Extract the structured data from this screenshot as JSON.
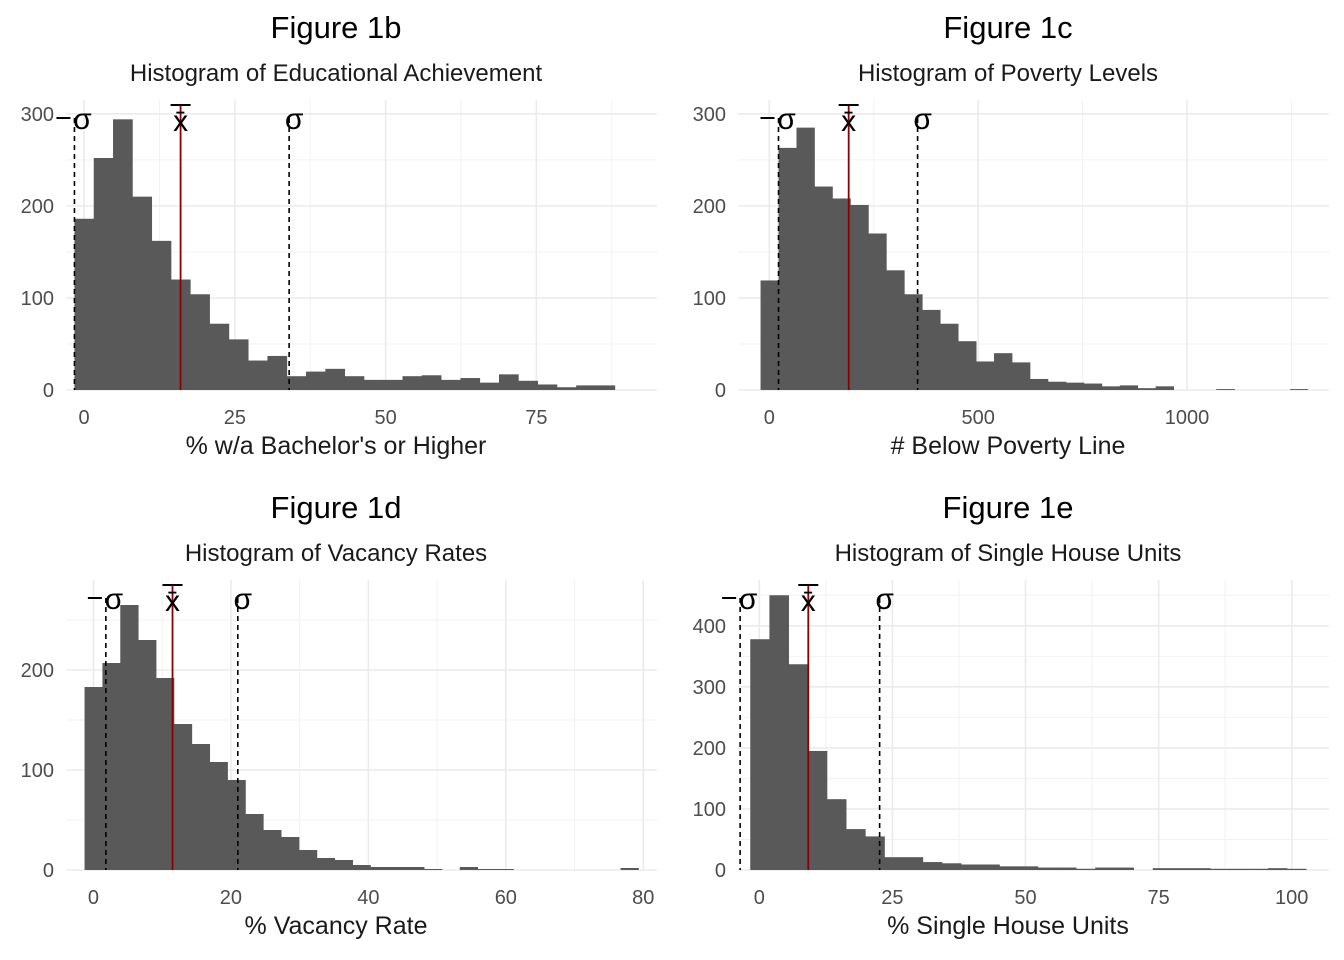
{
  "chart_data": [
    {
      "type": "bar",
      "title": "Figure 1b",
      "subtitle": "Histogram of Educational Achievement",
      "xlabel": "% w/a Bachelor's or Higher",
      "ylabel": "",
      "x_ticks": [
        0,
        25,
        50,
        75
      ],
      "y_ticks": [
        0,
        100,
        200,
        300
      ],
      "xlim": [
        -3,
        95
      ],
      "ylim": [
        0,
        315
      ],
      "grid": true,
      "bins": {
        "start": -1.6,
        "width": 3.2,
        "counts": [
          186,
          252,
          294,
          210,
          162,
          120,
          104,
          72,
          55,
          32,
          37,
          15,
          20,
          23,
          15,
          11,
          11,
          15,
          16,
          11,
          13,
          8,
          17,
          10,
          6,
          3,
          5,
          5
        ]
      },
      "mean": {
        "x": 16,
        "color": "#8b0000",
        "label": "x̄"
      },
      "sd_lines": [
        {
          "x": -1.6,
          "label": "−σ"
        },
        {
          "x": 34,
          "label": "σ"
        }
      ]
    },
    {
      "type": "bar",
      "title": "Figure 1c",
      "subtitle": "Histogram of Poverty Levels",
      "xlabel": "# Below Poverty Line",
      "ylabel": "",
      "x_ticks": [
        0,
        500,
        1000
      ],
      "y_ticks": [
        0,
        100,
        200,
        300
      ],
      "xlim": [
        -75,
        1340
      ],
      "ylim": [
        0,
        315
      ],
      "grid": true,
      "bins": {
        "start": -21,
        "width": 43,
        "counts": [
          119,
          263,
          285,
          221,
          208,
          201,
          170,
          130,
          104,
          87,
          72,
          53,
          31,
          40,
          30,
          12,
          9,
          8,
          7,
          4,
          5,
          2,
          4,
          0,
          0,
          0,
          0,
          0,
          0,
          0
        ]
      },
      "extra_bins": [
        {
          "x0": 1070,
          "x1": 1115,
          "count": 1
        },
        {
          "x0": 1247,
          "x1": 1290,
          "count": 1
        }
      ],
      "mean": {
        "x": 190,
        "color": "#8b0000",
        "label": "x̄"
      },
      "sd_lines": [
        {
          "x": 22,
          "label": "−σ"
        },
        {
          "x": 355,
          "label": "σ"
        }
      ]
    },
    {
      "type": "bar",
      "title": "Figure 1d",
      "subtitle": "Histogram of Vacancy Rates",
      "xlabel": "% Vacancy Rate",
      "ylabel": "",
      "x_ticks": [
        0,
        20,
        40,
        60,
        80
      ],
      "y_ticks": [
        0,
        100,
        200
      ],
      "xlim": [
        -4,
        82
      ],
      "ylim": [
        0,
        290
      ],
      "grid": true,
      "bins": {
        "start": -1.3,
        "width": 2.6,
        "counts": [
          183,
          207,
          265,
          230,
          192,
          146,
          126,
          108,
          90,
          56,
          40,
          33,
          20,
          12,
          10,
          5,
          3,
          3,
          3,
          1,
          0,
          3,
          1,
          1,
          0,
          0,
          0,
          0,
          0,
          0,
          2
        ]
      },
      "mean": {
        "x": 11.5,
        "color": "#8b0000",
        "label": "x̄"
      },
      "sd_lines": [
        {
          "x": 1.8,
          "label": "−σ"
        },
        {
          "x": 21,
          "label": "σ"
        }
      ]
    },
    {
      "type": "bar",
      "title": "Figure 1e",
      "subtitle": "Histogram of Single House Units",
      "xlabel": "% Single House Units",
      "ylabel": "",
      "x_ticks": [
        0,
        25,
        50,
        75,
        100
      ],
      "y_ticks": [
        0,
        100,
        200,
        300,
        400
      ],
      "xlim": [
        -4,
        107
      ],
      "ylim": [
        0,
        475
      ],
      "grid": true,
      "bins": {
        "start": -1.7,
        "width": 3.6,
        "counts": [
          378,
          450,
          337,
          195,
          116,
          67,
          55,
          21,
          21,
          13,
          11,
          9,
          9,
          6,
          6,
          4,
          4,
          2,
          4,
          4,
          0,
          3,
          3,
          3,
          2,
          2,
          2,
          3,
          2
        ]
      },
      "mean": {
        "x": 9.2,
        "color": "#8b0000",
        "label": "x̄"
      },
      "sd_lines": [
        {
          "x": -3.6,
          "label": "−σ"
        },
        {
          "x": 22.6,
          "label": "σ"
        }
      ]
    }
  ]
}
